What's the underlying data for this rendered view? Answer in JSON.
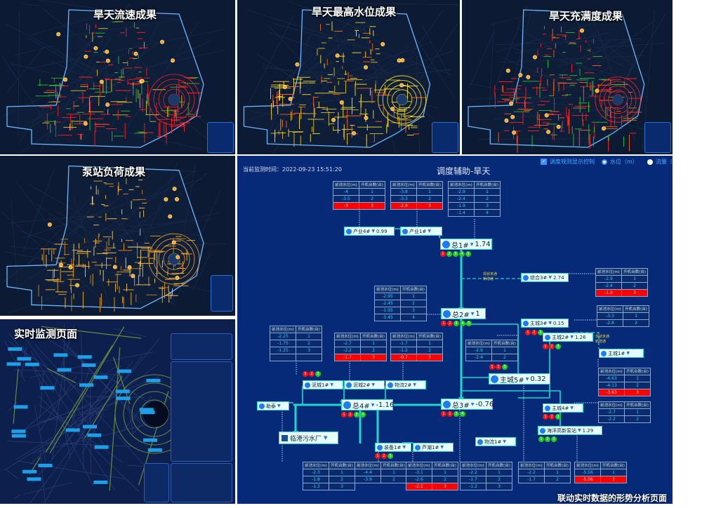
{
  "panels": [
    {
      "id": "p1",
      "title": "旱天流速成果",
      "palette": [
        "#ff2020",
        "#ff2020",
        "#e0c020",
        "#30c030"
      ]
    },
    {
      "id": "p2",
      "title": "旱天最高水位成果",
      "palette": [
        "#ffe030",
        "#ffe030",
        "#ff6020",
        "#e0c020"
      ]
    },
    {
      "id": "p3",
      "title": "旱天充满度成果",
      "palette": [
        "#ff2020",
        "#ff2020",
        "#ff6020",
        "#30c030"
      ]
    },
    {
      "id": "p4",
      "title": "泵站负荷成果",
      "palette": [
        "#f0a020",
        "#ffb830",
        "#d08018",
        "#ffd060"
      ]
    },
    {
      "id": "p5",
      "title": "实时监测页面"
    }
  ],
  "diagram": {
    "time_label": "当前监测时间：2022-09-23 15:51:20",
    "title": "调度辅助-旱天",
    "controls": {
      "rule_toggle": "调度规则显示控制",
      "radio_level": "水位（m）",
      "radio_flow": "流量（"
    },
    "table_header": [
      "前池水位(m)",
      "开机台数(台)"
    ],
    "dashed_label": "现状未通\n新增通",
    "plant": "临港污水厂",
    "caption": "联动实时数据的形势分析页面",
    "colors": {
      "bg": "#062a78",
      "pipe": "#1fd6d0",
      "alert": "#ff0000",
      "on": "#22cc22",
      "off": "#ff1010"
    },
    "tables": [
      {
        "rows": [
          [
            "-4",
            "1"
          ],
          [
            "-3.5",
            "2"
          ],
          [
            "-3",
            "3"
          ]
        ],
        "alert_row": 2
      },
      {
        "rows": [
          [
            "-3.8",
            "1"
          ],
          [
            "-3.3",
            "2"
          ],
          [
            "-2.8",
            "3"
          ]
        ],
        "alert_row": 2
      },
      {
        "rows": [
          [
            "-2.9",
            "1"
          ],
          [
            "-2.4",
            "2"
          ],
          [
            "-1.9",
            "3"
          ],
          [
            "-1.4",
            "4"
          ]
        ]
      },
      {
        "rows": [
          [
            "-2.9",
            "1"
          ],
          [
            "-2.4",
            "2"
          ],
          [
            "-1.9",
            "3"
          ]
        ],
        "alert_row": 2
      },
      {
        "rows": [
          [
            "-2.95",
            "1"
          ],
          [
            "-2.45",
            "2"
          ],
          [
            "-1.95",
            "3"
          ],
          [
            "-1.45",
            "4"
          ]
        ]
      },
      {
        "rows": [
          [
            "-2.25",
            "1"
          ],
          [
            "-1.75",
            "2"
          ],
          [
            "-1.25",
            "3"
          ],
          [
            "",
            ""
          ]
        ]
      },
      {
        "rows": [
          [
            "-2.7",
            "1"
          ],
          [
            "-2.2",
            "2"
          ],
          [
            "-1.7",
            "3"
          ]
        ],
        "alert_row": 2
      },
      {
        "rows": [
          [
            "-1.7",
            "1"
          ],
          [
            "-1.2",
            "2"
          ],
          [
            "-0.7",
            "3"
          ]
        ],
        "alert_row": 2
      },
      {
        "rows": [
          [
            "-2.9",
            "1"
          ],
          [
            "-2.4",
            "2"
          ]
        ]
      },
      {
        "rows": [
          [
            "-3.3",
            "1"
          ],
          [
            "-2.8",
            "2"
          ]
        ]
      },
      {
        "rows": [
          [
            "-4.63",
            "1"
          ],
          [
            "-4.13",
            "2"
          ],
          [
            "-3.63",
            "3"
          ]
        ],
        "alert_row": 2
      },
      {
        "rows": [
          [
            "-2.7",
            "1"
          ],
          [
            "-2.2",
            "2"
          ]
        ]
      },
      {
        "rows": [
          [
            "-2.3",
            "1"
          ],
          [
            "-1.8",
            "2"
          ],
          [
            "-1.3",
            "3"
          ]
        ]
      },
      {
        "rows": [
          [
            "-4.4",
            "1"
          ],
          [
            "-3.9",
            "2"
          ]
        ]
      },
      {
        "rows": [
          [
            "-3.1",
            "1"
          ],
          [
            "-2.6",
            "2"
          ],
          [
            "-2.1",
            "3"
          ]
        ],
        "alert_row": 2
      },
      {
        "rows": [
          [
            "-2.2",
            "1"
          ],
          [
            "-1.7",
            "2"
          ],
          [
            "-1.2",
            "3"
          ]
        ]
      },
      {
        "rows": [
          [
            "-2.2",
            "1"
          ],
          [
            "-1.7",
            "2"
          ]
        ]
      },
      {
        "rows": [
          [
            "-5.56",
            "1"
          ],
          [
            "-5.06",
            "2"
          ]
        ],
        "alert_row": 1
      }
    ],
    "stations": [
      {
        "name": "产业4#",
        "value": "0.99"
      },
      {
        "name": "产业1#",
        "value": ""
      },
      {
        "name": "总1#",
        "value": "1.74",
        "big": true,
        "pumps": [
          "off",
          "on",
          "on",
          "on",
          "on"
        ]
      },
      {
        "name": "综合3#",
        "value": "2.74"
      },
      {
        "name": "总2#",
        "value": "1",
        "big": true,
        "pumps": [
          "off",
          "off",
          "on",
          "on",
          "on"
        ]
      },
      {
        "name": "主城3#",
        "value": "0.15",
        "pumps": [
          "off",
          "off",
          "on"
        ]
      },
      {
        "name": "主城2#",
        "value": "1.26",
        "pumps": [
          "off",
          "off",
          "on"
        ]
      },
      {
        "name": "主城1#",
        "value": ""
      },
      {
        "name": "主城5#",
        "value": "0.32",
        "big": true,
        "pumps": [
          "off",
          "off",
          "on"
        ]
      },
      {
        "name": "泥城1#",
        "value": "",
        "pumps": [
          "off",
          "off",
          "on"
        ]
      },
      {
        "name": "泥城2#",
        "value": ""
      },
      {
        "name": "物流2#",
        "value": ""
      },
      {
        "name": "勒泰",
        "value": ""
      },
      {
        "name": "总4#",
        "value": "-1.16",
        "big": true,
        "pumps": [
          "off",
          "off",
          "on",
          "on"
        ]
      },
      {
        "name": "总3#",
        "value": "-0.76",
        "big": true,
        "pumps": [
          "off",
          "off",
          "on",
          "on"
        ]
      },
      {
        "name": "主城4#",
        "value": "",
        "pumps": [
          "off",
          "off",
          "on"
        ]
      },
      {
        "name": "海洋高新泵站",
        "value": "1.29",
        "pumps": [
          "on",
          "on",
          "on"
        ]
      },
      {
        "name": "物流1#",
        "value": ""
      },
      {
        "name": "装备1#",
        "value": "",
        "pumps": [
          "off",
          "off",
          "on"
        ]
      },
      {
        "name": "芦潮1#",
        "value": ""
      }
    ]
  }
}
